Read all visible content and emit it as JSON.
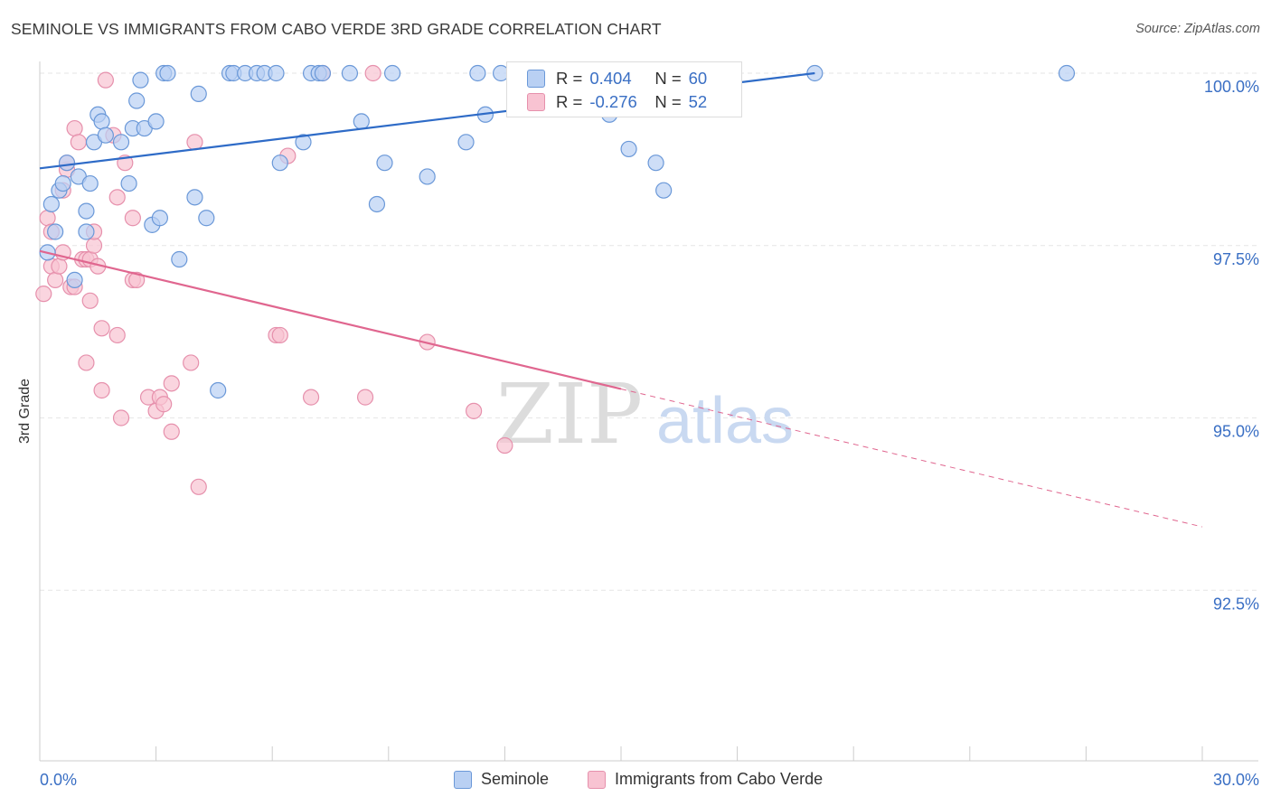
{
  "header": {
    "title": "SEMINOLE VS IMMIGRANTS FROM CABO VERDE 3RD GRADE CORRELATION CHART",
    "source": "Source: ZipAtlas.com"
  },
  "stats": {
    "rows": [
      {
        "r_label": "R =",
        "r_value": "0.404",
        "n_label": "N =",
        "n_value": "60"
      },
      {
        "r_label": "R =",
        "r_value": "-0.276",
        "n_label": "N =",
        "n_value": "52"
      }
    ]
  },
  "watermark": {
    "zip": "ZIP",
    "atlas": "atlas"
  },
  "colors": {
    "seminole_fill": "#b9d0f3",
    "seminole_stroke": "#6a98d8",
    "seminole_line": "#2e6bc7",
    "cabo_fill": "#f8c3d2",
    "cabo_stroke": "#e690ac",
    "cabo_line": "#e0668f",
    "tick_label": "#3a6fc4",
    "grid": "#e6e6e6"
  },
  "chart_data": {
    "type": "scatter",
    "title": "SEMINOLE VS IMMIGRANTS FROM CABO VERDE 3RD GRADE CORRELATION CHART",
    "xlabel": "",
    "ylabel": "3rd Grade",
    "xlim": [
      0,
      30
    ],
    "ylim": [
      90.0,
      100.25
    ],
    "x_tick_labels": [
      "0.0%",
      "30.0%"
    ],
    "x_tick_values": [
      0,
      30
    ],
    "y_tick_values": [
      92.5,
      95.0,
      97.5,
      100.0
    ],
    "y_tick_labels": [
      "92.5%",
      "95.0%",
      "97.5%",
      "100.0%"
    ],
    "grid": true,
    "legend": {
      "placement": "bottom-center"
    },
    "series": [
      {
        "name": "Seminole",
        "points": [
          [
            0.2,
            97.4
          ],
          [
            0.3,
            98.1
          ],
          [
            0.4,
            97.7
          ],
          [
            0.5,
            98.3
          ],
          [
            0.6,
            98.4
          ],
          [
            0.7,
            98.7
          ],
          [
            0.9,
            97.0
          ],
          [
            1.0,
            98.5
          ],
          [
            1.2,
            98.0
          ],
          [
            1.3,
            98.4
          ],
          [
            1.2,
            97.7
          ],
          [
            1.4,
            99.0
          ],
          [
            1.5,
            99.4
          ],
          [
            1.6,
            99.3
          ],
          [
            1.7,
            99.1
          ],
          [
            2.1,
            99.0
          ],
          [
            2.3,
            98.4
          ],
          [
            2.4,
            99.2
          ],
          [
            2.5,
            99.6
          ],
          [
            2.6,
            99.9
          ],
          [
            2.7,
            99.2
          ],
          [
            2.9,
            97.8
          ],
          [
            3.0,
            99.3
          ],
          [
            3.1,
            97.9
          ],
          [
            3.2,
            100.0
          ],
          [
            3.3,
            100.0
          ],
          [
            3.6,
            97.3
          ],
          [
            4.0,
            98.2
          ],
          [
            4.1,
            99.7
          ],
          [
            4.3,
            97.9
          ],
          [
            4.6,
            95.4
          ],
          [
            4.9,
            100.0
          ],
          [
            5.0,
            100.0
          ],
          [
            5.3,
            100.0
          ],
          [
            5.6,
            100.0
          ],
          [
            5.8,
            100.0
          ],
          [
            6.1,
            100.0
          ],
          [
            6.2,
            98.7
          ],
          [
            6.8,
            99.0
          ],
          [
            7.0,
            100.0
          ],
          [
            7.2,
            100.0
          ],
          [
            7.3,
            100.0
          ],
          [
            8.0,
            100.0
          ],
          [
            8.3,
            99.3
          ],
          [
            8.7,
            98.1
          ],
          [
            8.9,
            98.7
          ],
          [
            9.1,
            100.0
          ],
          [
            10.0,
            98.5
          ],
          [
            11.0,
            99.0
          ],
          [
            11.3,
            100.0
          ],
          [
            11.5,
            99.4
          ],
          [
            11.9,
            100.0
          ],
          [
            14.4,
            100.0
          ],
          [
            14.7,
            99.4
          ],
          [
            15.2,
            98.9
          ],
          [
            15.9,
            98.7
          ],
          [
            16.1,
            98.3
          ],
          [
            17.3,
            100.0
          ],
          [
            20.0,
            100.0
          ],
          [
            26.5,
            100.0
          ]
        ],
        "trend": {
          "x": [
            0,
            20.0
          ],
          "y": [
            98.62,
            100.0
          ]
        }
      },
      {
        "name": "Immigrants from Cabo Verde",
        "points": [
          [
            0.1,
            96.8
          ],
          [
            0.2,
            97.9
          ],
          [
            0.3,
            97.2
          ],
          [
            0.3,
            97.7
          ],
          [
            0.4,
            97.0
          ],
          [
            0.5,
            97.2
          ],
          [
            0.6,
            98.3
          ],
          [
            0.6,
            97.4
          ],
          [
            0.7,
            98.6
          ],
          [
            0.7,
            98.7
          ],
          [
            0.8,
            96.9
          ],
          [
            0.9,
            99.2
          ],
          [
            0.9,
            96.9
          ],
          [
            1.0,
            99.0
          ],
          [
            1.1,
            97.3
          ],
          [
            1.2,
            95.8
          ],
          [
            1.2,
            97.3
          ],
          [
            1.3,
            96.7
          ],
          [
            1.3,
            97.3
          ],
          [
            1.4,
            97.5
          ],
          [
            1.4,
            97.7
          ],
          [
            1.5,
            97.2
          ],
          [
            1.6,
            96.3
          ],
          [
            1.6,
            95.4
          ],
          [
            1.7,
            99.9
          ],
          [
            1.9,
            99.1
          ],
          [
            2.0,
            98.2
          ],
          [
            2.0,
            96.2
          ],
          [
            2.1,
            95.0
          ],
          [
            2.2,
            98.7
          ],
          [
            2.4,
            97.9
          ],
          [
            2.4,
            97.0
          ],
          [
            2.5,
            97.0
          ],
          [
            2.8,
            95.3
          ],
          [
            3.0,
            95.1
          ],
          [
            3.1,
            95.3
          ],
          [
            3.2,
            95.2
          ],
          [
            3.4,
            95.5
          ],
          [
            3.4,
            94.8
          ],
          [
            3.9,
            95.8
          ],
          [
            4.0,
            99.0
          ],
          [
            4.1,
            94.0
          ],
          [
            6.1,
            96.2
          ],
          [
            6.2,
            96.2
          ],
          [
            6.4,
            98.8
          ],
          [
            7.0,
            95.3
          ],
          [
            7.3,
            100.0
          ],
          [
            8.4,
            95.3
          ],
          [
            8.6,
            100.0
          ],
          [
            10.0,
            96.1
          ],
          [
            11.2,
            95.1
          ],
          [
            12.0,
            94.6
          ]
        ],
        "trend": {
          "x": [
            0,
            15.0
          ],
          "y": [
            97.42,
            95.42
          ]
        },
        "trend_dashed": {
          "x": [
            15.0,
            30.0
          ],
          "y": [
            95.42,
            93.42
          ]
        }
      }
    ]
  },
  "legend": {
    "items": [
      {
        "label": "Seminole"
      },
      {
        "label": "Immigrants from Cabo Verde"
      }
    ]
  }
}
